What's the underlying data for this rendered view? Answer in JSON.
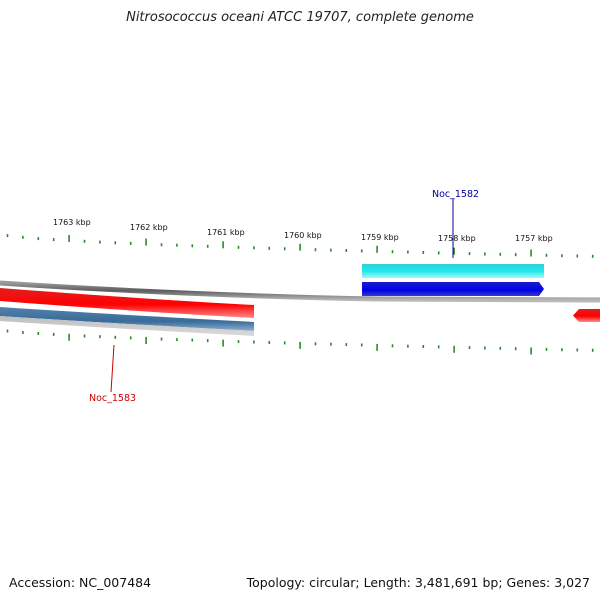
{
  "title": "Nitrosococcus oceani ATCC 19707, complete genome",
  "footer": {
    "accession": "Accession: NC_007484",
    "summary": "Topology: circular; Length: 3,481,691 bp; Genes: 3,027"
  },
  "scale": {
    "labels": [
      "1763 kbp",
      "1762 kbp",
      "1761 kbp",
      "1760 kbp",
      "1759 kbp",
      "1758 kbp",
      "1757 kbp"
    ]
  },
  "genes": [
    {
      "name": "Noc_1582",
      "color": "#000099"
    },
    {
      "name": "Noc_1583",
      "color": "#cc0000"
    }
  ],
  "colors": {
    "backbone": "#808080",
    "forward_cds": "#00cccc",
    "forward_gene": "#0000cc",
    "reverse_cds": "#ee0000",
    "reverse_gene": "#3d6e98",
    "tick": "#2a8a2a"
  }
}
